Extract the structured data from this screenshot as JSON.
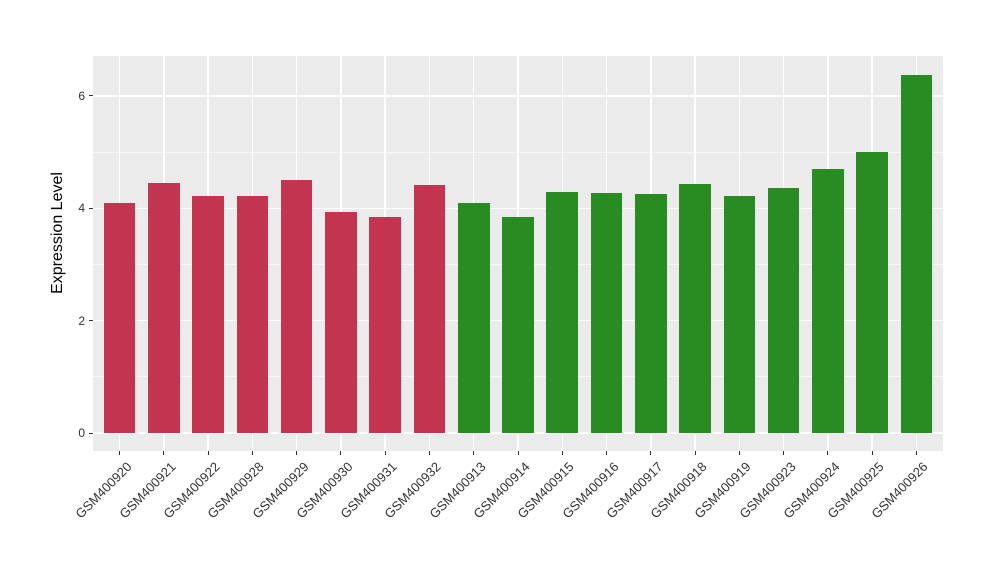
{
  "figure": {
    "background": "#FFFFFF"
  },
  "chart_data": {
    "type": "bar",
    "title": "",
    "xlabel": "",
    "ylabel": "Expression Level",
    "ylim": [
      -0.32,
      6.71
    ],
    "yticks": [
      0,
      2,
      4,
      6
    ],
    "yticks_minor": [
      1,
      3,
      5
    ],
    "grid": true,
    "legend": "none",
    "panel_bg": "#EBEBEB",
    "grid_color": "#FFFFFF",
    "tick_color": "#333333",
    "axis_text_color": "#333333",
    "categories": [
      "GSM400920",
      "GSM400921",
      "GSM400922",
      "GSM400928",
      "GSM400929",
      "GSM400930",
      "GSM400931",
      "GSM400932",
      "GSM400913",
      "GSM400914",
      "GSM400915",
      "GSM400916",
      "GSM400917",
      "GSM400918",
      "GSM400919",
      "GSM400923",
      "GSM400924",
      "GSM400925",
      "GSM400926"
    ],
    "series": [
      {
        "name": "Expression Level",
        "values": [
          4.1,
          4.45,
          4.21,
          4.22,
          4.5,
          3.93,
          3.85,
          4.41,
          4.1,
          3.84,
          4.29,
          4.27,
          4.25,
          4.43,
          4.21,
          4.36,
          4.69,
          5.01,
          6.37
        ]
      }
    ],
    "groups": [
      "red",
      "red",
      "red",
      "red",
      "red",
      "red",
      "red",
      "red",
      "green",
      "green",
      "green",
      "green",
      "green",
      "green",
      "green",
      "green",
      "green",
      "green",
      "green"
    ],
    "palette": {
      "red": "#C33450",
      "green": "#288C23"
    }
  }
}
